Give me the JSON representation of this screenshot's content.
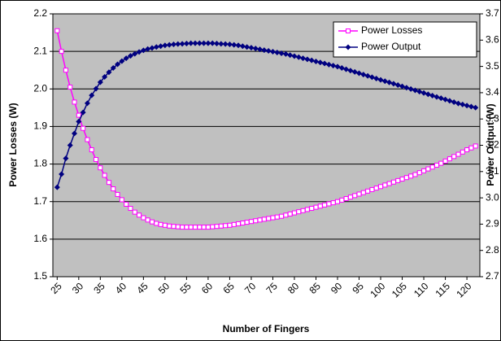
{
  "chart_data": {
    "type": "line",
    "xlabel": "Number of Fingers",
    "ylabel": "Power Losses (W)",
    "y2label": "Power Output (W)",
    "x": [
      25,
      26,
      27,
      28,
      29,
      30,
      31,
      32,
      33,
      34,
      35,
      36,
      37,
      38,
      39,
      40,
      41,
      42,
      43,
      44,
      45,
      46,
      47,
      48,
      49,
      50,
      51,
      52,
      53,
      54,
      55,
      56,
      57,
      58,
      59,
      60,
      61,
      62,
      63,
      64,
      65,
      66,
      67,
      68,
      69,
      70,
      71,
      72,
      73,
      74,
      75,
      76,
      77,
      78,
      79,
      80,
      81,
      82,
      83,
      84,
      85,
      86,
      87,
      88,
      89,
      90,
      91,
      92,
      93,
      94,
      95,
      96,
      97,
      98,
      99,
      100,
      101,
      102,
      103,
      104,
      105,
      106,
      107,
      108,
      109,
      110,
      111,
      112,
      113,
      114,
      115,
      116,
      117,
      118,
      119,
      120,
      121,
      122
    ],
    "xlim": [
      24,
      123
    ],
    "xticks": [
      25,
      30,
      35,
      40,
      45,
      50,
      55,
      60,
      65,
      70,
      75,
      80,
      85,
      90,
      95,
      100,
      105,
      110,
      115,
      120
    ],
    "ylim": [
      1.5,
      2.2
    ],
    "yticks": [
      {
        "value": 1.5,
        "label": "1.5"
      },
      {
        "value": 1.6,
        "label": "1.6"
      },
      {
        "value": 1.7,
        "label": "1.7"
      },
      {
        "value": 1.8,
        "label": "1.8"
      },
      {
        "value": 1.9,
        "label": "1.9"
      },
      {
        "value": 2.0,
        "label": "2.0"
      },
      {
        "value": 2.1,
        "label": "2.1"
      },
      {
        "value": 2.2,
        "label": "2.2"
      }
    ],
    "y2lim": [
      2.7,
      3.7
    ],
    "y2ticks": [
      {
        "value": 2.7,
        "label": "2.7"
      },
      {
        "value": 2.8,
        "label": "2.8"
      },
      {
        "value": 2.9,
        "label": "2.9"
      },
      {
        "value": 3.0,
        "label": "3.0"
      },
      {
        "value": 3.1,
        "label": "3.1"
      },
      {
        "value": 3.2,
        "label": "3.2"
      },
      {
        "value": 3.3,
        "label": "3.3"
      },
      {
        "value": 3.4,
        "label": "3.4"
      },
      {
        "value": 3.5,
        "label": "3.5"
      },
      {
        "value": 3.6,
        "label": "3.6"
      },
      {
        "value": 3.7,
        "label": "3.7"
      }
    ],
    "grid": true,
    "legend": "upper right",
    "series": [
      {
        "name": "Power Losses",
        "color": "#ff00ff",
        "marker": "square",
        "values": [
          2.155,
          2.1,
          2.05,
          2.005,
          1.965,
          1.93,
          1.895,
          1.865,
          1.838,
          1.812,
          1.79,
          1.77,
          1.751,
          1.734,
          1.719,
          1.705,
          1.693,
          1.682,
          1.672,
          1.664,
          1.657,
          1.651,
          1.646,
          1.642,
          1.639,
          1.637,
          1.635,
          1.634,
          1.633,
          1.632,
          1.632,
          1.632,
          1.632,
          1.632,
          1.632,
          1.632,
          1.633,
          1.634,
          1.635,
          1.636,
          1.637,
          1.639,
          1.641,
          1.643,
          1.645,
          1.647,
          1.649,
          1.651,
          1.653,
          1.655,
          1.657,
          1.659,
          1.661,
          1.664,
          1.667,
          1.67,
          1.673,
          1.676,
          1.679,
          1.682,
          1.685,
          1.688,
          1.691,
          1.694,
          1.697,
          1.7,
          1.704,
          1.708,
          1.712,
          1.716,
          1.72,
          1.724,
          1.728,
          1.732,
          1.736,
          1.74,
          1.744,
          1.748,
          1.752,
          1.756,
          1.76,
          1.764,
          1.768,
          1.772,
          1.777,
          1.782,
          1.787,
          1.792,
          1.797,
          1.802,
          1.808,
          1.814,
          1.82,
          1.826,
          1.832,
          1.838,
          1.843,
          1.848
        ]
      },
      {
        "name": "Power Output",
        "color": "#000080",
        "marker": "diamond",
        "axis": "y2",
        "values": [
          3.04,
          3.09,
          3.15,
          3.2,
          3.245,
          3.29,
          3.325,
          3.36,
          3.39,
          3.415,
          3.44,
          3.46,
          3.478,
          3.494,
          3.508,
          3.52,
          3.531,
          3.54,
          3.548,
          3.555,
          3.561,
          3.566,
          3.57,
          3.574,
          3.577,
          3.58,
          3.582,
          3.584,
          3.585,
          3.586,
          3.587,
          3.588,
          3.588,
          3.588,
          3.588,
          3.588,
          3.588,
          3.587,
          3.586,
          3.585,
          3.584,
          3.582,
          3.58,
          3.577,
          3.574,
          3.571,
          3.568,
          3.565,
          3.562,
          3.559,
          3.556,
          3.553,
          3.55,
          3.547,
          3.543,
          3.539,
          3.535,
          3.531,
          3.527,
          3.523,
          3.519,
          3.515,
          3.511,
          3.507,
          3.503,
          3.499,
          3.494,
          3.489,
          3.484,
          3.479,
          3.474,
          3.469,
          3.464,
          3.459,
          3.454,
          3.449,
          3.444,
          3.439,
          3.434,
          3.429,
          3.424,
          3.419,
          3.414,
          3.409,
          3.404,
          3.399,
          3.394,
          3.389,
          3.384,
          3.379,
          3.374,
          3.369,
          3.364,
          3.359,
          3.355,
          3.351,
          3.347,
          3.343
        ]
      }
    ]
  }
}
